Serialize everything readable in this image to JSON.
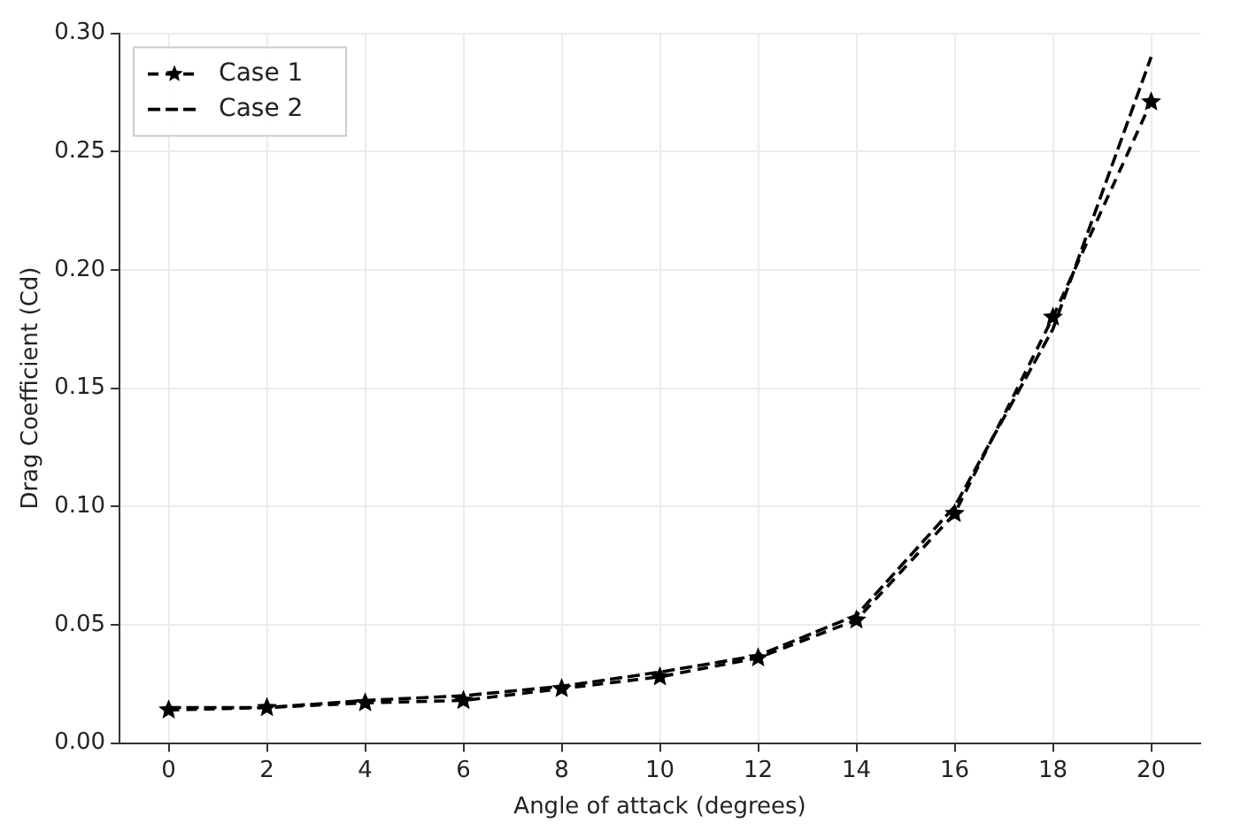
{
  "chart_data": {
    "type": "line",
    "xlabel": "Angle of attack (degrees)",
    "ylabel": "Drag Coefficient (Cd)",
    "x": [
      0,
      2,
      4,
      6,
      8,
      10,
      12,
      14,
      16,
      18,
      20
    ],
    "series": [
      {
        "name": "Case 1",
        "color": "#000000",
        "marker": "star",
        "line_style": "dashed",
        "values": [
          0.014,
          0.015,
          0.017,
          0.018,
          0.023,
          0.028,
          0.036,
          0.052,
          0.097,
          0.18,
          0.271
        ]
      },
      {
        "name": "Case 2",
        "color": "#000000",
        "marker": "none",
        "line_style": "dashed",
        "values": [
          0.015,
          0.015,
          0.018,
          0.02,
          0.024,
          0.03,
          0.037,
          0.054,
          0.1,
          0.175,
          0.29
        ]
      }
    ],
    "xlim": [
      -1,
      21
    ],
    "xticks": [
      0,
      2,
      4,
      6,
      8,
      10,
      12,
      14,
      16,
      18,
      20
    ],
    "ylim": [
      0,
      0.3
    ],
    "yticks": [
      {
        "value": 0,
        "label": "0.00"
      },
      0.05,
      {
        "value": 0.1,
        "label": "0.10"
      },
      0.15,
      {
        "value": 0.2,
        "label": "0.20"
      },
      0.25,
      {
        "value": 0.3,
        "label": "0.30"
      }
    ],
    "grid": true,
    "legend": "top left"
  }
}
